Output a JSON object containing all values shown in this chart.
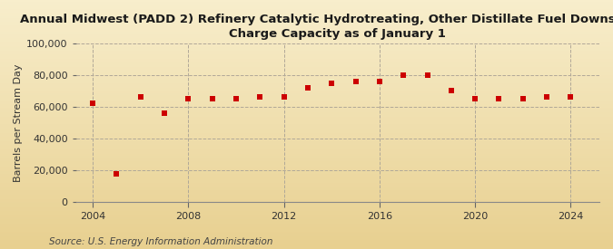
{
  "title_line1": "Annual Midwest (PADD 2) Refinery Catalytic Hydrotreating, Other Distillate Fuel Downstream",
  "title_line2": "Charge Capacity as of January 1",
  "ylabel": "Barrels per Stream Day",
  "source": "Source: U.S. Energy Information Administration",
  "background_color_top": "#f5e9c8",
  "background_color_bottom": "#e8d5a8",
  "plot_bg": "#f5e9c8",
  "years": [
    2004,
    2005,
    2006,
    2007,
    2008,
    2009,
    2010,
    2011,
    2012,
    2013,
    2014,
    2015,
    2016,
    2017,
    2018,
    2019,
    2020,
    2021,
    2022,
    2023,
    2024
  ],
  "values": [
    62000,
    18000,
    66000,
    56000,
    65000,
    65000,
    65000,
    66000,
    66000,
    72000,
    75000,
    76000,
    76000,
    80000,
    80000,
    70000,
    65000,
    65000,
    65000,
    66000,
    66000
  ],
  "marker_color": "#cc0000",
  "marker_size": 25,
  "ylim": [
    0,
    100000
  ],
  "yticks": [
    0,
    20000,
    40000,
    60000,
    80000,
    100000
  ],
  "xticks": [
    2004,
    2008,
    2012,
    2016,
    2020,
    2024
  ],
  "xlim_left": 2003.3,
  "xlim_right": 2025.2,
  "grid_color": "#b0a898",
  "title_fontsize": 9.5,
  "axis_fontsize": 8,
  "source_fontsize": 7.5,
  "tick_label_color": "#333333"
}
